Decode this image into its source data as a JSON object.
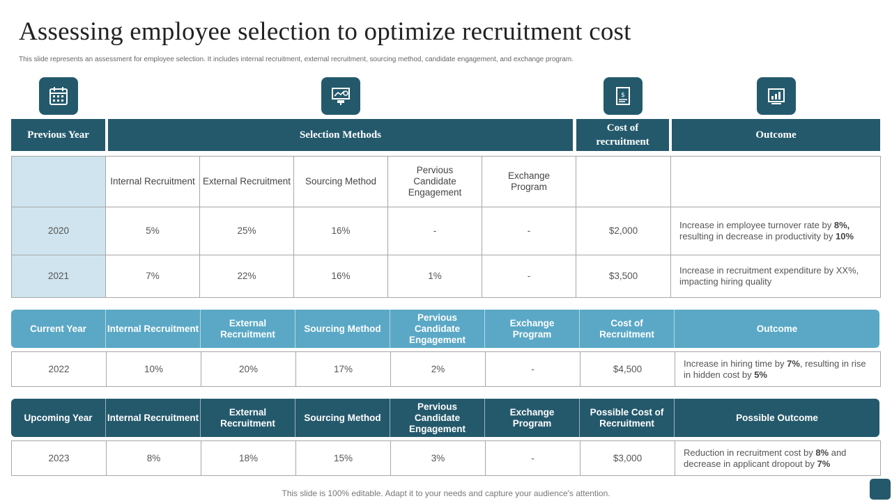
{
  "title": "Assessing employee selection to optimize recruitment cost",
  "subtitle": "This slide represents an assessment for employee selection. It includes internal recruitment, external recruitment, sourcing method, candidate engagement, and exchange program.",
  "icons": [
    "calendar-icon",
    "presentation-icon",
    "cost-document-icon",
    "outcome-chart-icon"
  ],
  "section_headers": {
    "previous_year": "Previous Year",
    "selection_methods": "Selection Methods",
    "cost_of_recruitment": "Cost of recruitment",
    "outcome": "Outcome"
  },
  "previous_table": {
    "columns": [
      "",
      "Internal Recruitment",
      "External Recruitment",
      "Sourcing Method",
      "Pervious Candidate Engagement",
      "Exchange Program",
      "",
      ""
    ],
    "rows": [
      {
        "year": "2020",
        "internal": "5%",
        "external": "25%",
        "sourcing": "16%",
        "engagement": "-",
        "exchange": "-",
        "cost": "$2,000",
        "outcome_a": "Increase in employee turnover rate by ",
        "outcome_b": "8%,",
        "outcome_c": " resulting in decrease in productivity by ",
        "outcome_d": "10%"
      },
      {
        "year": "2021",
        "internal": "7%",
        "external": "22%",
        "sourcing": "16%",
        "engagement": "1%",
        "exchange": "-",
        "cost": "$3,500",
        "outcome_a": "Increase in recruitment expenditure by XX%, impacting hiring quality"
      }
    ]
  },
  "current_table": {
    "header": [
      "Current Year",
      "Internal Recruitment",
      "External Recruitment",
      "Sourcing Method",
      "Pervious Candidate Engagement",
      "Exchange Program",
      "Cost of Recruitment",
      "Outcome"
    ],
    "row": {
      "year": "2022",
      "internal": "10%",
      "external": "20%",
      "sourcing": "17%",
      "engagement": "2%",
      "exchange": "-",
      "cost": "$4,500",
      "outcome_a": "Increase in hiring time by ",
      "outcome_b": "7%",
      "outcome_c": ", resulting in rise in hidden cost by ",
      "outcome_d": "5%"
    }
  },
  "upcoming_table": {
    "header": [
      "Upcoming Year",
      "Internal Recruitment",
      "External Recruitment",
      "Sourcing Method",
      "Pervious Candidate Engagement",
      "Exchange Program",
      "Possible Cost of Recruitment",
      "Possible Outcome"
    ],
    "row": {
      "year": "2023",
      "internal": "8%",
      "external": "18%",
      "sourcing": "15%",
      "engagement": "3%",
      "exchange": "-",
      "cost": "$3,000",
      "outcome_a": "Reduction in recruitment cost by ",
      "outcome_b": "8%",
      "outcome_c": " and decrease in applicant dropout by ",
      "outcome_d": "7%"
    }
  },
  "footer": "This slide is 100% editable. Adapt it to your needs and capture your audience's attention.",
  "colors": {
    "dark_teal": "#24596c",
    "light_teal": "#5aa8c6",
    "year_fill": "#cfe4ee"
  }
}
